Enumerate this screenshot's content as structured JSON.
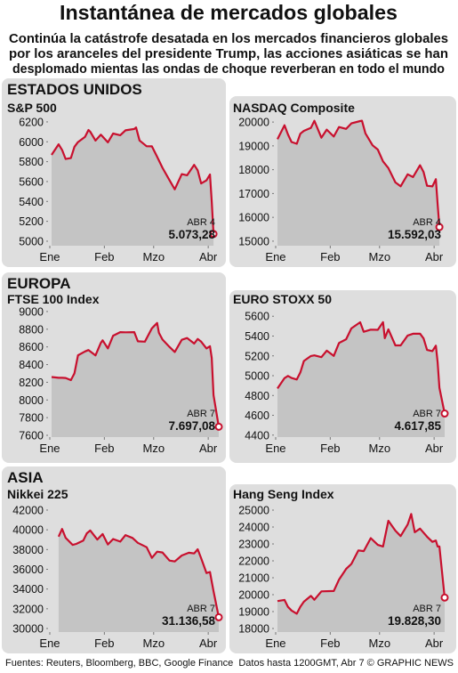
{
  "title": "Instantánea de mercados globales",
  "subtitle": [
    "Continúa la catástrofe desatada en los mercados financieros globales",
    "por los aranceles del presidente Trump, las acciones asiáticas se han",
    "desplomado mientas las ondas de choque reverberan en todo el mundo"
  ],
  "regions": [
    "ESTADOS UNIDOS",
    "EUROPA",
    "ASIA"
  ],
  "footer": {
    "sources": "Fuentes: Reuters, Bloomberg, BBC, Google Finance",
    "note": "Datos hasta 1200GMT, Abr 7 © GRAPHIC NEWS"
  },
  "chart_data": [
    {
      "type": "line",
      "title": "S&P 500",
      "color": "#c8102e",
      "area_color": "#c4c4c4",
      "x": [
        2,
        6,
        8,
        10,
        13,
        15,
        17,
        21,
        23,
        24,
        27,
        30,
        34,
        37,
        41,
        44,
        49,
        50,
        52,
        56,
        59,
        62,
        65,
        69,
        72,
        76,
        79,
        83,
        85,
        87,
        90,
        92,
        93,
        94
      ],
      "values": [
        5868,
        5975,
        5918,
        5827,
        5836,
        5950,
        5997,
        6049,
        6119,
        6101,
        6012,
        6071,
        5994,
        6083,
        6066,
        6115,
        6129,
        6144,
        6013,
        5955,
        5954,
        5849,
        5738,
        5614,
        5522,
        5675,
        5663,
        5768,
        5712,
        5581,
        5612,
        5671,
        5397,
        5073.28
      ],
      "value_labels": [
        null,
        null,
        null,
        null,
        null,
        null,
        null,
        null,
        null,
        null,
        null,
        null,
        null,
        null,
        null,
        null,
        null,
        null,
        null,
        null,
        null,
        null,
        null,
        null,
        null,
        null,
        null,
        null,
        null,
        null,
        null,
        null,
        null,
        "5.073,28"
      ],
      "annotation": "ABR 4",
      "xlim": [
        0,
        98
      ],
      "ylim": [
        4955,
        6280
      ],
      "xticks": [
        {
          "value": 1,
          "label": "Ene"
        },
        {
          "value": 32,
          "label": "Feb"
        },
        {
          "value": 60,
          "label": "Mzo"
        },
        {
          "value": 91,
          "label": "Abr"
        }
      ],
      "yticks": [
        5000,
        5200,
        5400,
        5600,
        5800,
        6000,
        6200
      ]
    },
    {
      "type": "line",
      "title": "NASDAQ Composite",
      "color": "#c8102e",
      "area_color": "#c4c4c4",
      "x": [
        2,
        6,
        8,
        10,
        13,
        15,
        17,
        21,
        23,
        27,
        30,
        34,
        37,
        41,
        44,
        49,
        50,
        52,
        56,
        59,
        62,
        65,
        69,
        72,
        76,
        79,
        83,
        85,
        87,
        90,
        92,
        93,
        94
      ],
      "values": [
        19280,
        19865,
        19479,
        19162,
        19088,
        19511,
        19630,
        19757,
        20053,
        19342,
        19681,
        19392,
        19791,
        19714,
        19945,
        20041,
        20056,
        19524,
        19026,
        18847,
        18350,
        18069,
        17468,
        17303,
        17808,
        17692,
        18188,
        17899,
        17323,
        17299,
        17601,
        16551,
        15592.03
      ],
      "value_labels": [
        null,
        null,
        null,
        null,
        null,
        null,
        null,
        null,
        null,
        null,
        null,
        null,
        null,
        null,
        null,
        null,
        null,
        null,
        null,
        null,
        null,
        null,
        null,
        null,
        null,
        null,
        null,
        null,
        null,
        null,
        null,
        null,
        "15.592,03"
      ],
      "annotation": "ABR 4",
      "xlim": [
        0,
        98
      ],
      "ylim": [
        14810,
        20340
      ],
      "xticks": [
        {
          "value": 1,
          "label": "Ene"
        },
        {
          "value": 32,
          "label": "Feb"
        },
        {
          "value": 60,
          "label": "Mzo"
        },
        {
          "value": 91,
          "label": "Abr"
        }
      ],
      "yticks": [
        15000,
        16000,
        17000,
        18000,
        19000,
        20000
      ]
    },
    {
      "type": "line",
      "title": "FTSE 100 Index",
      "color": "#c8102e",
      "area_color": "#c4c4c4",
      "x": [
        2,
        6,
        8,
        10,
        13,
        15,
        17,
        21,
        23,
        27,
        30,
        31,
        34,
        37,
        41,
        44,
        49,
        51,
        55,
        59,
        62,
        63,
        65,
        69,
        72,
        76,
        79,
        83,
        85,
        87,
        90,
        92,
        93,
        94,
        97
      ],
      "values": [
        8260,
        8250,
        8251,
        8248,
        8224,
        8301,
        8505,
        8548,
        8565,
        8504,
        8646,
        8674,
        8583,
        8727,
        8767,
        8765,
        8767,
        8663,
        8659,
        8810,
        8871,
        8759,
        8683,
        8600,
        8542,
        8680,
        8701,
        8638,
        8689,
        8659,
        8583,
        8608,
        8474,
        8055,
        7697.08
      ],
      "value_labels": [
        null,
        null,
        null,
        null,
        null,
        null,
        null,
        null,
        null,
        null,
        null,
        null,
        null,
        null,
        null,
        null,
        null,
        null,
        null,
        null,
        null,
        null,
        null,
        null,
        null,
        null,
        null,
        null,
        null,
        null,
        null,
        null,
        null,
        null,
        "7.697,08"
      ],
      "annotation": "ABR 7",
      "xlim": [
        0,
        98
      ],
      "ylim": [
        7580,
        9070
      ],
      "xticks": [
        {
          "value": 1,
          "label": "Ene"
        },
        {
          "value": 32,
          "label": "Feb"
        },
        {
          "value": 60,
          "label": "Mzo"
        },
        {
          "value": 91,
          "label": "Abr"
        }
      ],
      "yticks": [
        7600,
        7800,
        8000,
        8200,
        8400,
        8600,
        8800,
        9000
      ]
    },
    {
      "type": "line",
      "title": "EURO STOXX 50",
      "color": "#c8102e",
      "area_color": "#c4c4c4",
      "x": [
        2,
        6,
        8,
        10,
        13,
        15,
        17,
        21,
        23,
        27,
        30,
        34,
        37,
        41,
        44,
        49,
        51,
        55,
        59,
        62,
        63,
        65,
        69,
        72,
        76,
        79,
        83,
        85,
        87,
        90,
        92,
        93,
        94,
        97
      ],
      "values": [
        4871,
        4975,
        4997,
        4977,
        4961,
        5032,
        5148,
        5199,
        5205,
        5187,
        5253,
        5200,
        5330,
        5368,
        5477,
        5539,
        5443,
        5465,
        5463,
        5540,
        5378,
        5467,
        5306,
        5306,
        5405,
        5423,
        5424,
        5376,
        5260,
        5248,
        5303,
        5135,
        4878,
        4617.85
      ],
      "value_labels": [
        null,
        null,
        null,
        null,
        null,
        null,
        null,
        null,
        null,
        null,
        null,
        null,
        null,
        null,
        null,
        null,
        null,
        null,
        null,
        null,
        null,
        null,
        null,
        null,
        null,
        null,
        null,
        null,
        null,
        null,
        null,
        null,
        null,
        "4.617,85"
      ],
      "annotation": "ABR 7",
      "xlim": [
        0,
        98
      ],
      "ylim": [
        4380,
        5710
      ],
      "xticks": [
        {
          "value": 1,
          "label": "Ene"
        },
        {
          "value": 32,
          "label": "Feb"
        },
        {
          "value": 60,
          "label": "Mzo"
        },
        {
          "value": 91,
          "label": "Abr"
        }
      ],
      "yticks": [
        4400,
        4600,
        4800,
        5000,
        5200,
        5400,
        5600
      ]
    },
    {
      "type": "line",
      "title": "Nikkei 225",
      "color": "#c8102e",
      "area_color": "#c4c4c4",
      "x": [
        6,
        8,
        10,
        14,
        16,
        20,
        22,
        24,
        28,
        31,
        34,
        37,
        41,
        44,
        48,
        51,
        56,
        59,
        62,
        65,
        69,
        72,
        76,
        80,
        83,
        85,
        87,
        90,
        92,
        93,
        94,
        97
      ],
      "values": [
        39307,
        40083,
        39190,
        38474,
        38573,
        38903,
        39646,
        39931,
        39016,
        39572,
        38520,
        39066,
        38801,
        39461,
        39174,
        38678,
        38237,
        37155,
        37785,
        37704,
        36887,
        36790,
        37396,
        37677,
        37608,
        38027,
        37120,
        35617,
        35725,
        34735,
        33780,
        31136.58
      ],
      "value_labels": [
        null,
        null,
        null,
        null,
        null,
        null,
        null,
        null,
        null,
        null,
        null,
        null,
        null,
        null,
        null,
        null,
        null,
        null,
        null,
        null,
        null,
        null,
        null,
        null,
        null,
        null,
        null,
        null,
        null,
        null,
        null,
        "31.136,58"
      ],
      "annotation": "ABR 7",
      "xlim": [
        0,
        98
      ],
      "ylim": [
        29640,
        42990
      ],
      "xticks": [
        {
          "value": 1,
          "label": "Ene"
        },
        {
          "value": 32,
          "label": "Feb"
        },
        {
          "value": 60,
          "label": "Mzo"
        },
        {
          "value": 91,
          "label": "Abr"
        }
      ],
      "yticks": [
        30000,
        32000,
        34000,
        36000,
        38000,
        40000,
        42000
      ]
    },
    {
      "type": "line",
      "title": "Hang Seng Index",
      "color": "#c8102e",
      "area_color": "#c4c4c4",
      "x": [
        2,
        6,
        8,
        10,
        13,
        15,
        17,
        21,
        23,
        27,
        34,
        37,
        41,
        44,
        48,
        51,
        55,
        59,
        62,
        65,
        69,
        72,
        76,
        78,
        80,
        83,
        87,
        90,
        92,
        93,
        94,
        97
      ],
      "values": [
        19623,
        19688,
        19279,
        19064,
        18874,
        19286,
        19584,
        19925,
        19700,
        20197,
        20217,
        20891,
        21521,
        21814,
        22616,
        22576,
        23341,
        22941,
        22849,
        24370,
        23783,
        23462,
        24146,
        24771,
        23689,
        23906,
        23426,
        23120,
        23202,
        22850,
        22849,
        19828.3
      ],
      "value_labels": [
        null,
        null,
        null,
        null,
        null,
        null,
        null,
        null,
        null,
        null,
        null,
        null,
        null,
        null,
        null,
        null,
        null,
        null,
        null,
        null,
        null,
        null,
        null,
        null,
        null,
        null,
        null,
        null,
        null,
        null,
        null,
        "19.828,30"
      ],
      "annotation": "ABR 7",
      "xlim": [
        0,
        98
      ],
      "ylim": [
        17790,
        25580
      ],
      "xticks": [
        {
          "value": 1,
          "label": "Ene"
        },
        {
          "value": 32,
          "label": "Feb"
        },
        {
          "value": 60,
          "label": "Mzo"
        },
        {
          "value": 91,
          "label": "Abr"
        }
      ],
      "yticks": [
        18000,
        19000,
        20000,
        21000,
        22000,
        23000,
        24000,
        25000
      ]
    }
  ]
}
